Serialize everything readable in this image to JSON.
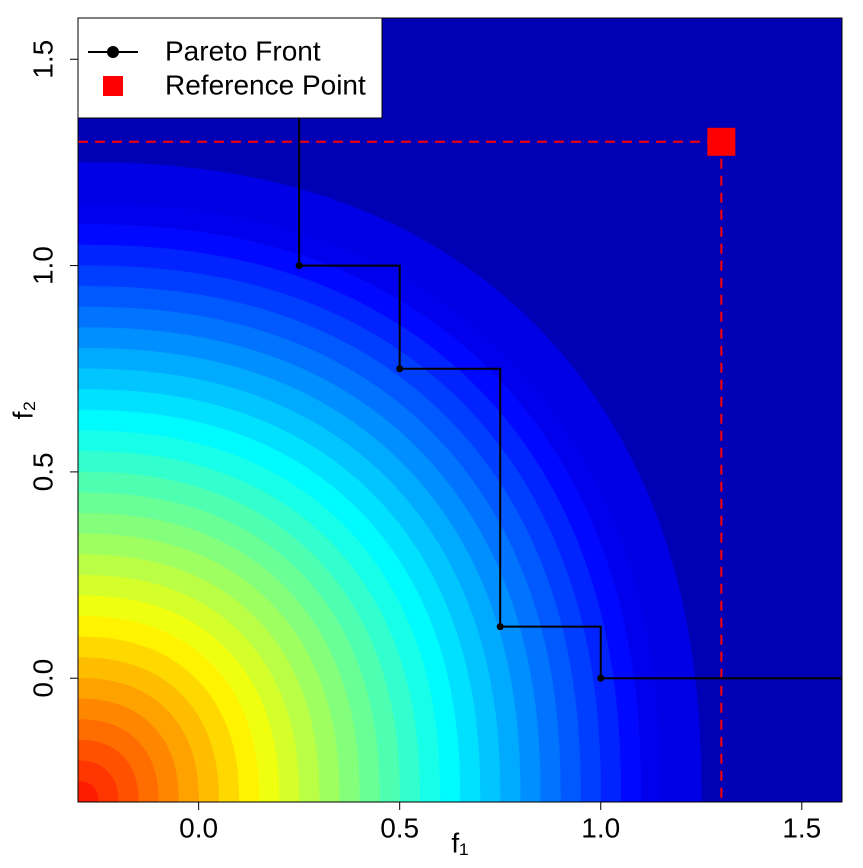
{
  "chart_data": {
    "type": "step",
    "xlabel": "f₁",
    "ylabel": "f₂",
    "xlim": [
      -0.3,
      1.6
    ],
    "ylim": [
      -0.3,
      1.6
    ],
    "xticks": [
      {
        "value": 0,
        "label": "0.0"
      },
      {
        "value": 0.5,
        "label": "0.5"
      },
      {
        "value": 1,
        "label": "1.0"
      },
      {
        "value": 1.5,
        "label": "1.5"
      }
    ],
    "yticks": [
      {
        "value": 0,
        "label": "0.0"
      },
      {
        "value": 0.5,
        "label": "0.5"
      },
      {
        "value": 1,
        "label": "1.0"
      },
      {
        "value": 1.5,
        "label": "1.5"
      }
    ],
    "series": [
      {
        "name": "Pareto Front",
        "color": "#000000",
        "x": [
          0.25,
          0.5,
          0.75,
          1
        ],
        "values": [
          1,
          0.75,
          0.125,
          0
        ]
      }
    ],
    "reference_point": {
      "name": "Reference Point",
      "color": "#ff0000",
      "x": 1.3,
      "y": 1.3
    },
    "legend": "top-left"
  }
}
